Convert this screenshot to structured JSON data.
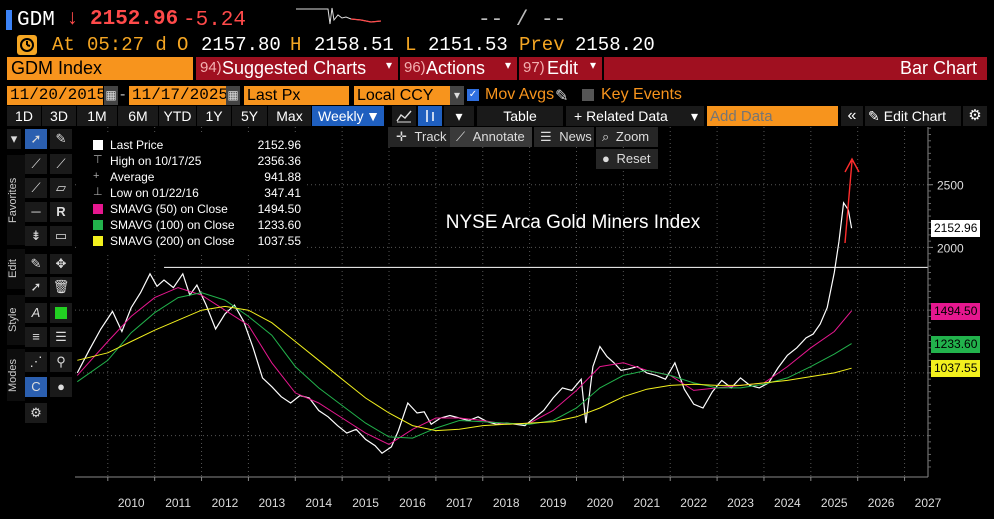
{
  "header": {
    "ticker": "GDM",
    "last_arrow": "↓",
    "last_price": "2152.96",
    "change": "-5.24",
    "dashes": "-- / --",
    "at_label": "At",
    "time": "05:27 d",
    "open_label": "O",
    "open": "2157.80",
    "high_label": "H",
    "high": "2158.51",
    "low_label": "L",
    "low": "2151.53",
    "prev_label": "Prev",
    "prev": "2158.20"
  },
  "menu": {
    "security": "GDM Index",
    "suggested_num": "94)",
    "suggested": "Suggested Charts",
    "actions_num": "96)",
    "actions": "Actions",
    "edit_num": "97)",
    "edit": "Edit",
    "bar_chart": "Bar Chart"
  },
  "settings": {
    "start_date": "11/20/2015",
    "end_date": "11/17/2025",
    "field": "Last Px",
    "currency": "Local CCY",
    "mov_avgs": "Mov Avgs",
    "key_events": "Key Events",
    "add_data_placeholder": "Add Data"
  },
  "toolbar": {
    "periods": [
      "1D",
      "3D",
      "1M",
      "6M",
      "YTD",
      "1Y",
      "5Y",
      "Max"
    ],
    "frequency": "Weekly",
    "table": "Table",
    "related_data": "+ Related Data",
    "edit_chart": "Edit Chart"
  },
  "subtoolbar": {
    "track": "Track",
    "annotate": "Annotate",
    "news": "News",
    "zoom": "Zoom",
    "reset": "Reset"
  },
  "palette": {
    "tabs": [
      "Favorites",
      "Edit",
      "Style",
      "Modes"
    ]
  },
  "legend": {
    "rows": [
      {
        "label": "Last Price",
        "value": "2152.96",
        "color": "#ffffff"
      },
      {
        "label": "High on 10/17/25",
        "value": "2356.36",
        "color": ""
      },
      {
        "label": "Average",
        "value": "941.88",
        "color": ""
      },
      {
        "label": "Low on 01/22/16",
        "value": "347.41",
        "color": ""
      },
      {
        "label": "SMAVG (50)  on Close",
        "value": "1494.50",
        "color": "#e6178f"
      },
      {
        "label": "SMAVG (100)  on Close",
        "value": "1233.60",
        "color": "#22b24c"
      },
      {
        "label": "SMAVG (200)  on Close",
        "value": "1037.55",
        "color": "#f2f01e"
      }
    ]
  },
  "chart_data": {
    "type": "line",
    "title": "NYSE Arca Gold Miners Index",
    "x_ticks": [
      "2010",
      "2011",
      "2012",
      "2013",
      "2014",
      "2015",
      "2016",
      "2017",
      "2018",
      "2019",
      "2020",
      "2021",
      "2022",
      "2023",
      "2024",
      "2025",
      "2026",
      "2027"
    ],
    "y_ticks": [
      2500,
      2000
    ],
    "ylim": [
      170,
      2960
    ],
    "xlim": [
      2009.3,
      2027.5
    ],
    "grid": true,
    "horizontal_lines": [
      1841
    ],
    "price_tags": [
      {
        "label": "2152.96",
        "value": 2152.96,
        "bg": "#ffffff"
      },
      {
        "label": "1494.50",
        "value": 1494.5,
        "bg": "#e6178f"
      },
      {
        "label": "1233.60",
        "value": 1233.6,
        "bg": "#22b24c"
      },
      {
        "label": "1037.55",
        "value": 1037.55,
        "bg": "#f2f01e"
      }
    ],
    "series": [
      {
        "name": "Last Price",
        "color": "#ffffff",
        "x": [
          2009.35,
          2009.6,
          2009.85,
          2010.1,
          2010.3,
          2010.5,
          2010.7,
          2010.9,
          2011.05,
          2011.2,
          2011.4,
          2011.6,
          2011.75,
          2011.9,
          2012.1,
          2012.3,
          2012.5,
          2012.7,
          2012.9,
          2013.1,
          2013.3,
          2013.5,
          2013.7,
          2013.9,
          2014.1,
          2014.3,
          2014.5,
          2014.7,
          2014.9,
          2015.1,
          2015.3,
          2015.5,
          2015.7,
          2015.85,
          2016.05,
          2016.2,
          2016.4,
          2016.6,
          2016.75,
          2016.9,
          2017.1,
          2017.3,
          2017.5,
          2017.7,
          2017.9,
          2018.1,
          2018.3,
          2018.5,
          2018.7,
          2018.9,
          2019.1,
          2019.3,
          2019.5,
          2019.7,
          2019.9,
          2020.1,
          2020.2,
          2020.35,
          2020.5,
          2020.65,
          2020.8,
          2020.95,
          2021.1,
          2021.3,
          2021.5,
          2021.7,
          2021.9,
          2022.1,
          2022.3,
          2022.5,
          2022.7,
          2022.9,
          2023.1,
          2023.3,
          2023.5,
          2023.7,
          2023.9,
          2024.1,
          2024.3,
          2024.5,
          2024.7,
          2024.9,
          2025.05,
          2025.2,
          2025.35,
          2025.5,
          2025.6,
          2025.7,
          2025.8,
          2025.87
        ],
        "values": [
          1000,
          1180,
          1350,
          1490,
          1330,
          1520,
          1640,
          1790,
          1690,
          1740,
          1680,
          1790,
          1620,
          1700,
          1540,
          1350,
          1470,
          1540,
          1410,
          1200,
          960,
          890,
          810,
          760,
          820,
          800,
          700,
          650,
          580,
          520,
          550,
          470,
          420,
          360,
          410,
          540,
          760,
          680,
          690,
          590,
          640,
          660,
          640,
          620,
          650,
          610,
          590,
          600,
          590,
          580,
          640,
          700,
          800,
          880,
          860,
          950,
          600,
          1050,
          1210,
          1130,
          1080,
          1020,
          1030,
          1050,
          1000,
          980,
          950,
          1080,
          870,
          750,
          720,
          850,
          940,
          880,
          960,
          900,
          880,
          920,
          1040,
          1140,
          1200,
          1280,
          1310,
          1390,
          1520,
          1800,
          2050,
          2356,
          2300,
          2152.96
        ]
      },
      {
        "name": "SMAVG (50) on Close",
        "color": "#e6178f",
        "x": [
          2009.35,
          2010.0,
          2010.5,
          2011.0,
          2011.5,
          2012.0,
          2012.5,
          2013.0,
          2013.5,
          2014.0,
          2014.5,
          2015.0,
          2015.5,
          2016.0,
          2016.5,
          2017.0,
          2017.5,
          2018.0,
          2018.5,
          2019.0,
          2019.5,
          2020.0,
          2020.5,
          2021.0,
          2021.5,
          2022.0,
          2022.5,
          2023.0,
          2023.5,
          2024.0,
          2024.5,
          2025.0,
          2025.5,
          2025.87
        ],
        "values": [
          980,
          1250,
          1450,
          1600,
          1680,
          1620,
          1500,
          1380,
          1080,
          840,
          760,
          640,
          520,
          430,
          550,
          640,
          640,
          620,
          590,
          600,
          700,
          860,
          1050,
          1080,
          1020,
          980,
          860,
          880,
          900,
          920,
          1050,
          1200,
          1330,
          1494.5
        ]
      },
      {
        "name": "SMAVG (100) on Close",
        "color": "#22b24c",
        "x": [
          2009.35,
          2010.0,
          2010.5,
          2011.0,
          2011.5,
          2012.0,
          2012.5,
          2013.0,
          2013.5,
          2014.0,
          2014.5,
          2015.0,
          2015.5,
          2016.0,
          2016.5,
          2017.0,
          2017.5,
          2018.0,
          2018.5,
          2019.0,
          2019.5,
          2020.0,
          2020.5,
          2021.0,
          2021.5,
          2022.0,
          2022.5,
          2023.0,
          2023.5,
          2024.0,
          2024.5,
          2025.0,
          2025.5,
          2025.87
        ],
        "values": [
          930,
          1100,
          1320,
          1480,
          1600,
          1640,
          1580,
          1450,
          1300,
          1050,
          880,
          740,
          600,
          490,
          480,
          560,
          620,
          610,
          600,
          590,
          620,
          720,
          880,
          980,
          1020,
          980,
          920,
          880,
          880,
          910,
          960,
          1050,
          1150,
          1233.6
        ]
      },
      {
        "name": "SMAVG (200) on Close",
        "color": "#f2f01e",
        "x": [
          2009.35,
          2010.0,
          2010.5,
          2011.0,
          2011.5,
          2012.0,
          2012.5,
          2013.0,
          2013.5,
          2014.0,
          2014.5,
          2015.0,
          2015.5,
          2016.0,
          2016.5,
          2017.0,
          2017.5,
          2018.0,
          2018.5,
          2019.0,
          2019.5,
          2020.0,
          2020.5,
          2021.0,
          2021.5,
          2022.0,
          2022.5,
          2023.0,
          2023.5,
          2024.0,
          2024.5,
          2025.0,
          2025.5,
          2025.87
        ],
        "values": [
          1100,
          1160,
          1250,
          1340,
          1420,
          1500,
          1530,
          1500,
          1400,
          1250,
          1100,
          950,
          800,
          680,
          580,
          540,
          550,
          580,
          590,
          600,
          610,
          650,
          720,
          810,
          870,
          900,
          910,
          900,
          900,
          920,
          940,
          970,
          1000,
          1037.55
        ]
      }
    ]
  }
}
